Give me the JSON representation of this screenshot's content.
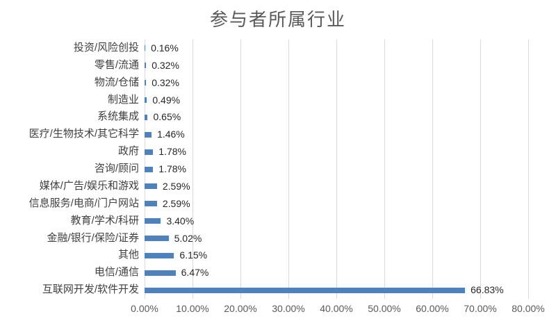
{
  "title": "参与者所属行业",
  "chart_data": {
    "type": "bar",
    "orientation": "horizontal",
    "title": "参与者所属行业",
    "categories": [
      "投资/风险创投",
      "零售/流通",
      "物流/仓储",
      "制造业",
      "系统集成",
      "医疗/生物技术/其它科学",
      "政府",
      "咨询/顾问",
      "媒体/广告/娱乐和游戏",
      "信息服务/电商/门户网站",
      "教育/学术/科研",
      "金融/银行/保险/证券",
      "其他",
      "电信/通信",
      "互联网开发/软件开发"
    ],
    "values": [
      0.16,
      0.32,
      0.32,
      0.49,
      0.65,
      1.46,
      1.78,
      1.78,
      2.59,
      2.59,
      3.4,
      5.02,
      6.15,
      6.47,
      66.83
    ],
    "value_labels": [
      "0.16%",
      "0.32%",
      "0.32%",
      "0.49%",
      "0.65%",
      "1.46%",
      "1.78%",
      "1.78%",
      "2.59%",
      "2.59%",
      "3.40%",
      "5.02%",
      "6.15%",
      "6.47%",
      "66.83%"
    ],
    "x_axis_ticks": [
      "0.00%",
      "10.00%",
      "20.00%",
      "30.00%",
      "40.00%",
      "50.00%",
      "60.00%",
      "70.00%",
      "80.00%"
    ],
    "xlim": [
      0,
      80
    ],
    "grid": "vertical",
    "legend": "none",
    "bar_color": "#4f81bd",
    "gridline_color": "#d9d9d9",
    "title_color": "#595959",
    "axis_text_color": "#595959",
    "label_text_color": "#262626"
  }
}
